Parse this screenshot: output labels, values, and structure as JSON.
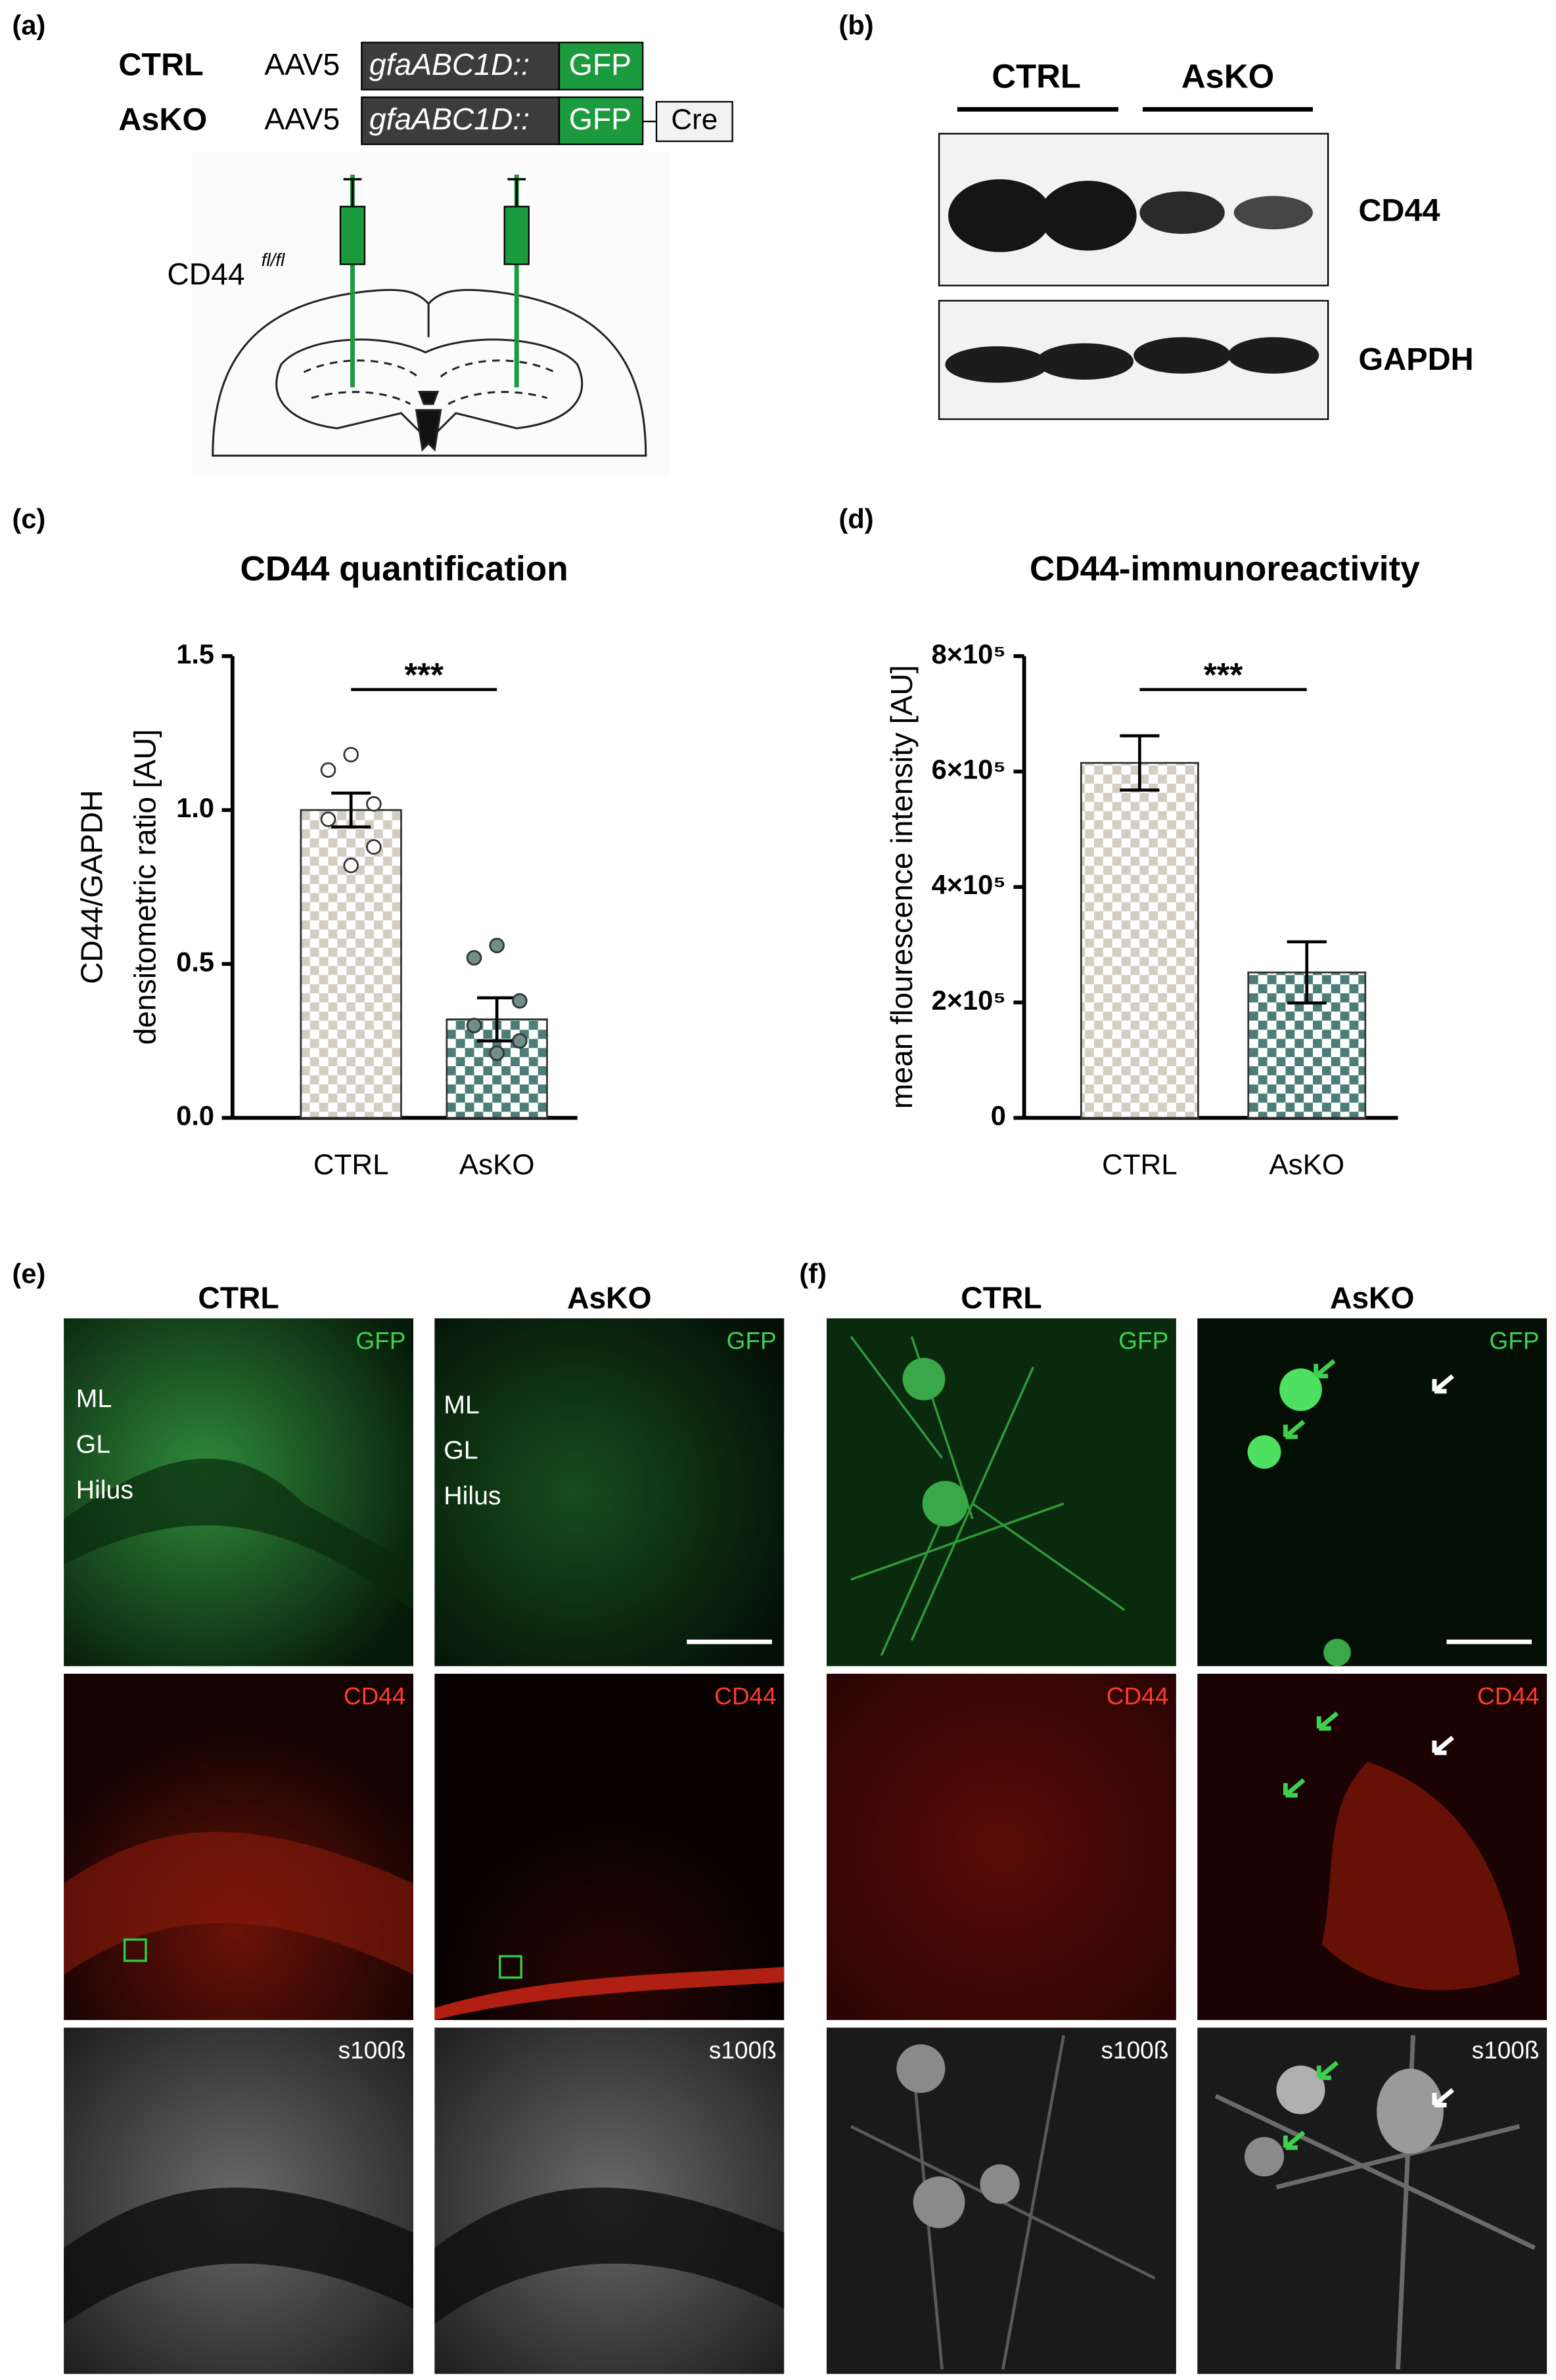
{
  "panels": {
    "a": {
      "label": "(a)",
      "rows": [
        {
          "name": "CTRL",
          "vector": "AAV5",
          "promoter": "gfaABC1D::",
          "reporter": "GFP"
        },
        {
          "name": "AsKO",
          "vector": "AAV5",
          "promoter": "gfaABC1D::",
          "reporter": "GFP",
          "recombinase": "Cre"
        }
      ],
      "mouse": "CD44",
      "mouse_sup": "fl/fl"
    },
    "b": {
      "label": "(b)",
      "groups": [
        "CTRL",
        "AsKO"
      ],
      "bands": [
        "CD44",
        "GAPDH"
      ]
    },
    "c": {
      "label": "(c)"
    },
    "d": {
      "label": "(d)"
    },
    "e": {
      "label": "(e)",
      "columns": [
        "CTRL",
        "AsKO"
      ],
      "channels": [
        "GFP",
        "CD44",
        "s100ß"
      ],
      "regions": [
        "ML",
        "GL",
        "Hilus"
      ]
    },
    "f": {
      "label": "(f)",
      "columns": [
        "CTRL",
        "AsKO"
      ],
      "channels": [
        "GFP",
        "CD44",
        "s100ß"
      ]
    }
  },
  "chart_data": [
    {
      "type": "bar",
      "title": "CD44 quantification",
      "ylabel": [
        "CD44/GAPDH",
        "densitometric ratio [AU]"
      ],
      "categories": [
        "CTRL",
        "AsKO"
      ],
      "values": [
        1.0,
        0.32
      ],
      "errors": [
        0.055,
        0.07
      ],
      "points": [
        [
          1.18,
          1.13,
          1.02,
          0.97,
          0.88,
          0.82
        ],
        [
          0.56,
          0.52,
          0.38,
          0.3,
          0.25,
          0.21
        ]
      ],
      "colors": [
        "#d2cec4",
        "#4d7d77"
      ],
      "ylim": [
        0,
        1.5
      ],
      "yticks": [
        {
          "value": 0,
          "label": "0.0"
        },
        {
          "value": 0.5,
          "label": "0.5"
        },
        {
          "value": 1.0,
          "label": "1.0"
        },
        {
          "value": 1.5,
          "label": "1.5"
        }
      ],
      "annotation": "***"
    },
    {
      "type": "bar",
      "title": "CD44-immunoreactivity",
      "ylabel": [
        "mean flourescence intensity [AU]"
      ],
      "categories": [
        "CTRL",
        "AsKO"
      ],
      "values": [
        615000,
        252000
      ],
      "errors": [
        47000,
        53000
      ],
      "colors": [
        "#d2cec4",
        "#4d7d77"
      ],
      "ylim": [
        0,
        800000
      ],
      "yticks": [
        0,
        {
          "value": 200000,
          "label": "2×10⁵"
        },
        {
          "value": 400000,
          "label": "4×10⁵"
        },
        {
          "value": 600000,
          "label": "6×10⁵"
        },
        {
          "value": 800000,
          "label": "8×10⁵"
        }
      ],
      "annotation": "***"
    }
  ]
}
